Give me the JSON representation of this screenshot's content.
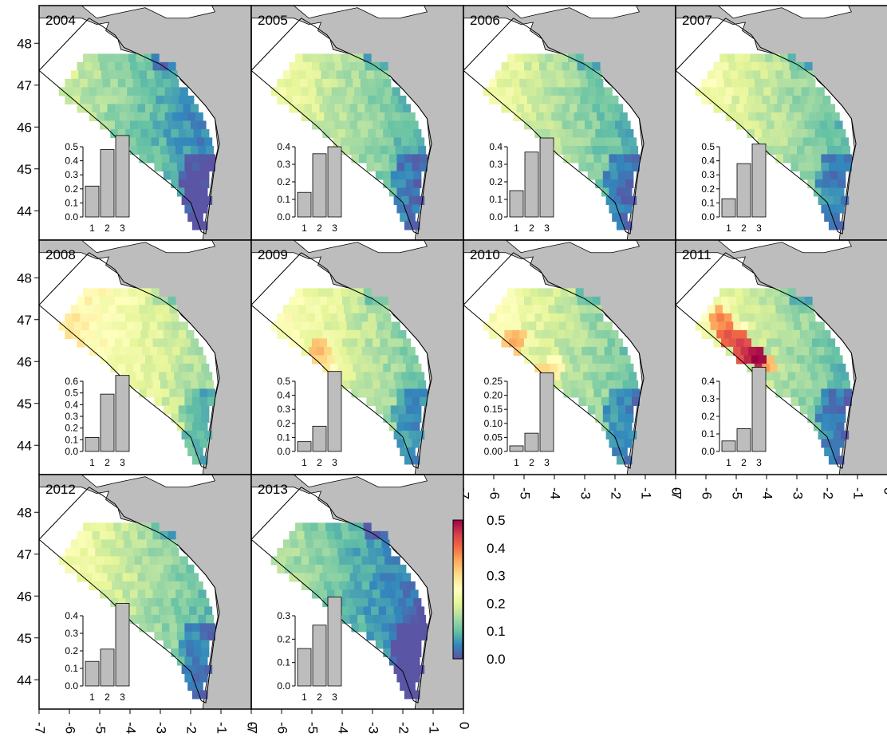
{
  "chart_data": {
    "type": "heatmap",
    "title": "",
    "xlabel": "",
    "ylabel": "",
    "xlim": [
      -7,
      0
    ],
    "ylim": [
      43.3,
      48.9
    ],
    "x_ticks": [
      "-7",
      "-6",
      "-5",
      "-4",
      "-3",
      "-2",
      "-1",
      "0"
    ],
    "y_ticks": [
      "44",
      "45",
      "46",
      "47",
      "48"
    ],
    "colorbar": {
      "ticks": [
        "0.0",
        "0.1",
        "0.2",
        "0.3",
        "0.4",
        "0.5"
      ],
      "range": [
        0,
        0.5
      ],
      "palette": [
        "#5e4fa2",
        "#3288bd",
        "#66c2a5",
        "#abdda4",
        "#e6f598",
        "#ffffbf",
        "#fee08b",
        "#fdae61",
        "#f46d43",
        "#d53e4f",
        "#9e0142"
      ]
    },
    "land_color": "#bdbdbd",
    "bar_color": "#bdbdbd",
    "panels": [
      {
        "year": "2004",
        "level": 0.1,
        "hot": [],
        "bars": {
          "categories": [
            "1",
            "2",
            "3"
          ],
          "values": [
            0.22,
            0.48,
            0.58
          ],
          "ticks": [
            "0.0",
            "0.1",
            "0.2",
            "0.3",
            "0.4",
            "0.5"
          ],
          "max": 0.5
        }
      },
      {
        "year": "2005",
        "level": 0.14,
        "hot": [],
        "bars": {
          "categories": [
            "1",
            "2",
            "3"
          ],
          "values": [
            0.14,
            0.36,
            0.4
          ],
          "ticks": [
            "0.0",
            "0.1",
            "0.2",
            "0.3",
            "0.4"
          ],
          "max": 0.4
        }
      },
      {
        "year": "2006",
        "level": 0.14,
        "hot": [],
        "bars": {
          "categories": [
            "1",
            "2",
            "3"
          ],
          "values": [
            0.15,
            0.37,
            0.45
          ],
          "ticks": [
            "0.0",
            "0.1",
            "0.2",
            "0.3",
            "0.4"
          ],
          "max": 0.4
        }
      },
      {
        "year": "2007",
        "level": 0.15,
        "hot": [],
        "bars": {
          "categories": [
            "1",
            "2",
            "3"
          ],
          "values": [
            0.13,
            0.38,
            0.52
          ],
          "ticks": [
            "0.0",
            "0.1",
            "0.2",
            "0.3",
            "0.4",
            "0.5"
          ],
          "max": 0.5
        }
      },
      {
        "year": "2008",
        "level": 0.2,
        "hot": [],
        "bars": {
          "categories": [
            "1",
            "2",
            "3"
          ],
          "values": [
            0.12,
            0.49,
            0.65
          ],
          "ticks": [
            "0.0",
            "0.1",
            "0.2",
            "0.3",
            "0.4",
            "0.5",
            "0.6"
          ],
          "max": 0.6
        }
      },
      {
        "year": "2009",
        "level": 0.17,
        "hot": [
          [
            -4.8,
            46.3,
            0.36
          ],
          [
            -4.6,
            46.0,
            0.32
          ],
          [
            -5.6,
            46.7,
            0.26
          ],
          [
            -4.4,
            45.8,
            0.27
          ]
        ],
        "bars": {
          "categories": [
            "1",
            "2",
            "3"
          ],
          "values": [
            0.07,
            0.18,
            0.57
          ],
          "ticks": [
            "0.0",
            "0.1",
            "0.2",
            "0.3",
            "0.4",
            "0.5"
          ],
          "max": 0.5
        }
      },
      {
        "year": "2010",
        "level": 0.16,
        "hot": [
          [
            -5.3,
            46.5,
            0.37
          ],
          [
            -4.4,
            45.6,
            0.36
          ],
          [
            -4.0,
            45.8,
            0.3
          ],
          [
            -5.6,
            46.8,
            0.26
          ]
        ],
        "bars": {
          "categories": [
            "1",
            "2",
            "3"
          ],
          "values": [
            0.02,
            0.065,
            0.28
          ],
          "ticks": [
            "0.00",
            "0.05",
            "0.10",
            "0.15",
            "0.20",
            "0.25"
          ],
          "max": 0.25
        }
      },
      {
        "year": "2011",
        "level": 0.15,
        "hot": [
          [
            -5.5,
            47.0,
            0.4
          ],
          [
            -5.3,
            46.6,
            0.44
          ],
          [
            -4.9,
            46.4,
            0.46
          ],
          [
            -4.6,
            46.2,
            0.48
          ],
          [
            -4.3,
            46.1,
            0.52
          ],
          [
            -4.1,
            45.9,
            0.38
          ],
          [
            -5.0,
            46.7,
            0.3
          ]
        ],
        "bars": {
          "categories": [
            "1",
            "2",
            "3"
          ],
          "values": [
            0.06,
            0.13,
            0.48
          ],
          "ticks": [
            "0.0",
            "0.1",
            "0.2",
            "0.3",
            "0.4"
          ],
          "max": 0.4
        }
      },
      {
        "year": "2012",
        "level": 0.15,
        "hot": [],
        "bars": {
          "categories": [
            "1",
            "2",
            "3"
          ],
          "values": [
            0.14,
            0.21,
            0.47
          ],
          "ticks": [
            "0.0",
            "0.1",
            "0.2",
            "0.3",
            "0.4"
          ],
          "max": 0.4
        }
      },
      {
        "year": "2013",
        "level": 0.08,
        "hot": [],
        "bars": {
          "categories": [
            "1",
            "2",
            "3"
          ],
          "values": [
            0.16,
            0.26,
            0.38
          ],
          "ticks": [
            "0.0",
            "0.1",
            "0.2",
            "0.3"
          ],
          "max": 0.3
        }
      }
    ]
  }
}
